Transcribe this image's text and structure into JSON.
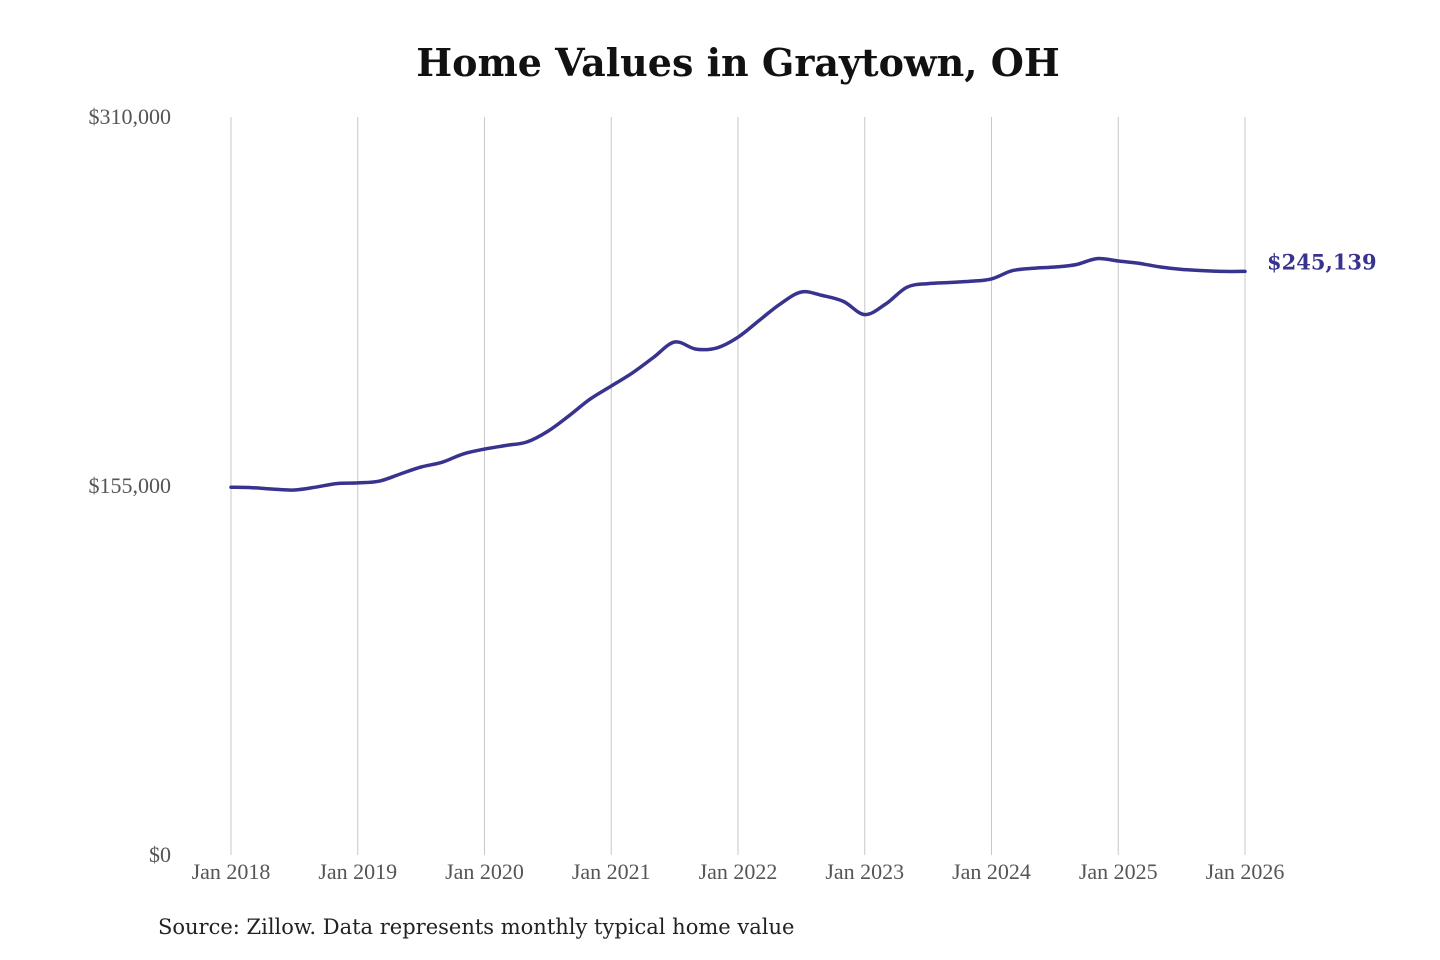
{
  "title": "Home Values in Graytown, OH",
  "source": "Source: Zillow. Data represents monthly typical home value",
  "colors": {
    "line": "#37338f",
    "grid": "#c8c8c8",
    "tick_text": "#555555"
  },
  "chart_data": {
    "type": "line",
    "title": "Home Values in Graytown, OH",
    "xlabel": "",
    "ylabel": "",
    "ylim": [
      0,
      310000
    ],
    "yticks": [
      0,
      155000,
      310000
    ],
    "ytick_labels": [
      "$0",
      "$155,000",
      "$310,000"
    ],
    "xlim": [
      "2018-01",
      "2026-01"
    ],
    "xtick_labels": [
      "Jan 2018",
      "Jan 2019",
      "Jan 2020",
      "Jan 2021",
      "Jan 2022",
      "Jan 2023",
      "Jan 2024",
      "Jan 2025",
      "Jan 2026"
    ],
    "grid": "vertical",
    "legend": "none",
    "end_label": "$245,139",
    "series": [
      {
        "x": [
          "2018-01",
          "2018-03",
          "2018-05",
          "2018-07",
          "2018-09",
          "2018-11",
          "2019-01",
          "2019-03",
          "2019-05",
          "2019-07",
          "2019-09",
          "2019-11",
          "2020-01",
          "2020-03",
          "2020-05",
          "2020-07",
          "2020-09",
          "2020-11",
          "2021-01",
          "2021-03",
          "2021-05",
          "2021-07",
          "2021-09",
          "2021-11",
          "2022-01",
          "2022-03",
          "2022-05",
          "2022-07",
          "2022-09",
          "2022-11",
          "2023-01",
          "2023-03",
          "2023-05",
          "2023-07",
          "2023-09",
          "2023-11",
          "2024-01",
          "2024-03",
          "2024-05",
          "2024-07",
          "2024-09",
          "2024-11",
          "2025-01",
          "2025-03",
          "2025-05",
          "2025-07",
          "2025-09",
          "2025-11",
          "2026-01"
        ],
        "values": [
          154500,
          154300,
          153700,
          153300,
          154500,
          156000,
          156300,
          157000,
          160000,
          163000,
          165000,
          168500,
          170500,
          172000,
          173500,
          178000,
          184500,
          191500,
          197000,
          202500,
          209000,
          215500,
          212500,
          213000,
          217500,
          224500,
          231500,
          236500,
          235000,
          232500,
          227000,
          231500,
          238500,
          240000,
          240500,
          241000,
          242000,
          245500,
          246500,
          247000,
          248000,
          250500,
          249500,
          248500,
          247000,
          246000,
          245500,
          245139,
          245139
        ]
      }
    ]
  }
}
